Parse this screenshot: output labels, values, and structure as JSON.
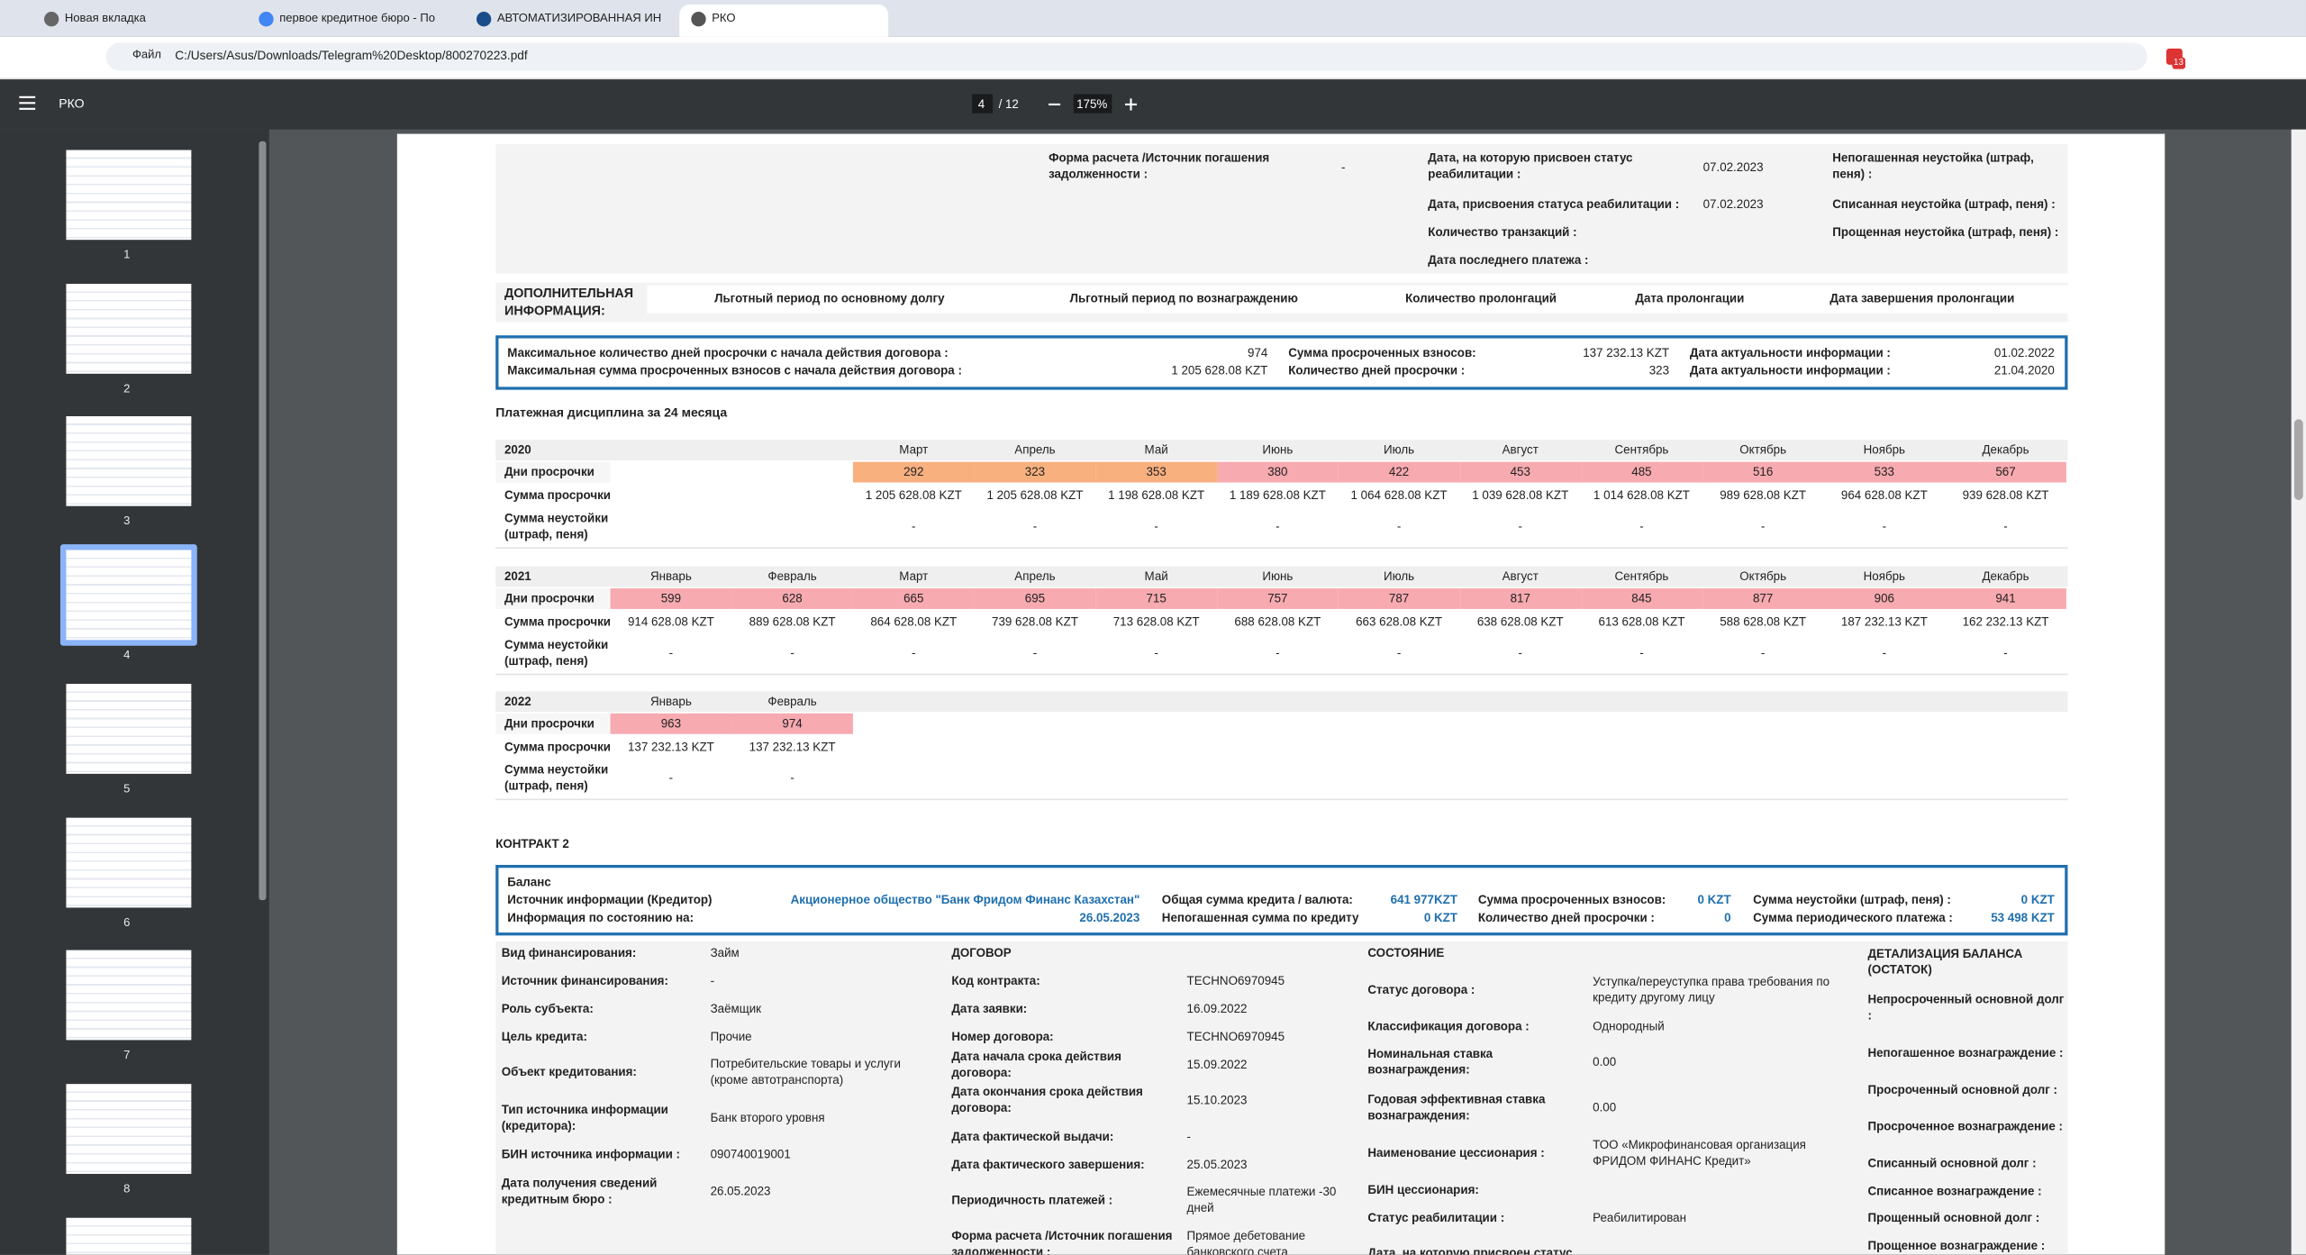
{
  "browser": {
    "tabs": [
      "Новая вкладка",
      "первое кредитное бюро - По",
      "АВТОМАТИЗИРОВАННАЯ ИН",
      "РКО"
    ],
    "file_label": "Файл",
    "address": "C:/Users/Asus/Downloads/Telegram%20Desktop/800270223.pdf"
  },
  "viewer": {
    "title": "РКО",
    "page": 4,
    "page_total": "/ 12",
    "zoom": "175%",
    "extension_badge": 13,
    "thumbnails": [
      1,
      2,
      3,
      4,
      5,
      6,
      7,
      8
    ]
  },
  "report": {
    "prev_contract": {
      "items": [
        {
          "label": "Форма расчета /Источник погашения задолженности :",
          "value": "-"
        },
        {
          "label": "Дата, на которую присвоен статус реабилитации :",
          "value": "07.02.2023"
        },
        {
          "label": "Дата, присвоения статуса реабилитации :",
          "value": "07.02.2023"
        },
        {
          "label": "Количество транзакций :"
        },
        {
          "label": "Дата последнего платежа :"
        },
        {
          "label": "Непогашенная неустойка (штраф, пеня) :"
        },
        {
          "label": "Списанная неустойка (штраф, пеня) :"
        },
        {
          "label": "Прощенная неустойка (штраф, пеня) :"
        }
      ]
    },
    "additional_info": {
      "label": "ДОПОЛНИТЕЛЬНАЯ ИНФОРМАЦИЯ:",
      "headers": [
        "Льготный период по основному долгу",
        "Льготный период по вознаграждению",
        "Количество пролонгаций",
        "Дата пролонгации",
        "Дата завершения пролонгации"
      ]
    },
    "overdue_summary": {
      "rows": [
        [
          "Максимальное количество дней просрочки с начала действия договора :",
          974,
          "Сумма просроченных взносов:",
          "137 232.13 KZT",
          "Дата актуальности информации :",
          "01.02.2022"
        ],
        [
          "Максимальная сумма просроченных взносов с начала действия договора :",
          "1 205 628.08 KZT",
          "Количество дней просрочки :",
          323,
          "Дата актуальности информации :",
          "21.04.2020"
        ]
      ]
    },
    "payment_discipline": {
      "title": "Платежная дисциплина за 24 месяца",
      "row_labels": [
        "Дни просрочки",
        "Сумма просрочки",
        "Сумма неустойки (штраф, пеня)"
      ],
      "years": [
        {
          "year": 2020,
          "months": [
            "Март",
            "Апрель",
            "Май",
            "Июнь",
            "Июль",
            "Август",
            "Сентябрь",
            "Октябрь",
            "Ноябрь",
            "Декабрь"
          ],
          "days": [
            292,
            323,
            353,
            380,
            422,
            453,
            485,
            516,
            533,
            567
          ],
          "sums": [
            "1 205 628.08 KZT",
            "1 205 628.08 KZT",
            "1 198 628.08 KZT",
            "1 189 628.08 KZT",
            "1 064 628.08 KZT",
            "1 039 628.08 KZT",
            "1 014 628.08 KZT",
            "989 628.08 KZT",
            "964 628.08 KZT",
            "939 628.08 KZT"
          ],
          "penalties": [
            "-",
            "-",
            "-",
            "-",
            "-",
            "-",
            "-",
            "-",
            "-",
            "-"
          ],
          "colors": [
            "#f8b07f",
            "#f8b07f",
            "#f8b07f",
            "#f7aab0",
            "#f7aab0",
            "#f7aab0",
            "#f7aab0",
            "#f7aab0",
            "#f7aab0",
            "#f7aab0"
          ]
        },
        {
          "year": 2021,
          "months": [
            "Январь",
            "Февраль",
            "Март",
            "Апрель",
            "Май",
            "Июнь",
            "Июль",
            "Август",
            "Сентябрь",
            "Октябрь",
            "Ноябрь",
            "Декабрь"
          ],
          "days": [
            599,
            628,
            665,
            695,
            715,
            757,
            787,
            817,
            845,
            877,
            906,
            941
          ],
          "sums": [
            "914 628.08 KZT",
            "889 628.08 KZT",
            "864 628.08 KZT",
            "739 628.08 KZT",
            "713 628.08 KZT",
            "688 628.08 KZT",
            "663 628.08 KZT",
            "638 628.08 KZT",
            "613 628.08 KZT",
            "588 628.08 KZT",
            "187 232.13 KZT",
            "162 232.13 KZT"
          ],
          "penalties": [
            "-",
            "-",
            "-",
            "-",
            "-",
            "-",
            "-",
            "-",
            "-",
            "-",
            "-",
            "-"
          ],
          "colors": [
            "#f7aab0",
            "#f7aab0",
            "#f7aab0",
            "#f7aab0",
            "#f7aab0",
            "#f7aab0",
            "#f7aab0",
            "#f7aab0",
            "#f7aab0",
            "#f7aab0",
            "#f7aab0",
            "#f7aab0"
          ]
        },
        {
          "year": 2022,
          "months": [
            "Январь",
            "Февраль"
          ],
          "days": [
            963,
            974
          ],
          "sums": [
            "137 232.13 KZT",
            "137 232.13 KZT"
          ],
          "penalties": [
            "-",
            "-"
          ],
          "colors": [
            "#f7aab0",
            "#f7aab0"
          ]
        }
      ]
    },
    "contract2": {
      "title": "КОНТРАКТ 2",
      "balance": {
        "title": "Баланс",
        "rows": [
          [
            "Источник информации (Кредитор)",
            "Акционерное общество \"Банк Фридом Финанс Казахстан\"",
            "Общая сумма кредита / валюта:",
            "641 977KZT",
            "Сумма просроченных взносов:",
            "0 KZT",
            "Сумма неустойки (штраф, пеня) :",
            "0 KZT"
          ],
          [
            "Информация по состоянию на:",
            "26.05.2023",
            "Непогашенная сумма по кредиту",
            "0 KZT",
            "Количество дней просрочки :",
            0,
            "Сумма периодического платежа :",
            "53 498 KZT"
          ]
        ]
      },
      "details": {
        "columns": [
          {
            "rows": [
              {
                "label": "Вид финансирования:",
                "value": "Займ"
              },
              {
                "label": "Источник финансирования:",
                "value": "-"
              },
              {
                "label": "Роль субъекта:",
                "value": "Заёмщик"
              },
              {
                "label": "Цель кредита:",
                "value": "Прочие"
              },
              {
                "label": "Объект кредитования:",
                "value": "Потребительские товары и услуги (кроме автотранспорта)"
              },
              {
                "label": "Тип источника информации (кредитора):",
                "value": "Банк второго уровня"
              },
              {
                "label": "БИН источника информации :",
                "value": "090740019001"
              },
              {
                "label": "Дата получения сведений кредитным бюро :",
                "value": "26.05.2023"
              }
            ]
          },
          {
            "heading": "ДОГОВОР",
            "rows": [
              {
                "label": "Код контракта:",
                "value": "TECHNO6970945"
              },
              {
                "label": "Дата заявки:",
                "value": "16.09.2022"
              },
              {
                "label": "Номер договора:",
                "value": "TECHNO6970945"
              },
              {
                "label": "Дата начала срока действия договора:",
                "value": "15.09.2022"
              },
              {
                "label": "Дата окончания срока действия договора:",
                "value": "15.10.2023"
              },
              {
                "label": "Дата фактической выдачи:",
                "value": "-"
              },
              {
                "label": "Дата фактического завершения:",
                "value": "25.05.2023"
              },
              {
                "label": "Периодичность платежей :",
                "value": "Ежемесячные платежи -30 дней"
              },
              {
                "label": "Форма расчета /Источник погашения задолженности :",
                "value": "Прямое дебетование банковского счета"
              }
            ]
          },
          {
            "heading": "СОСТОЯНИЕ",
            "rows": [
              {
                "label": "Статус договора :",
                "value": "Уступка/переуступка права требования по кредиту другому лицу"
              },
              {
                "label": "Классификация договора :",
                "value": "Однородный"
              },
              {
                "label": "Номинальная ставка вознаграждения:",
                "value": "0.00"
              },
              {
                "label": "Годовая эффективная ставка вознаграждения:",
                "value": "0.00"
              },
              {
                "label": "Наименование цессионария :",
                "value": "ТОО «Микрофинансовая организация ФРИДОМ ФИНАНС Кредит»"
              },
              {
                "label": "БИН цессионария:"
              },
              {
                "label": "Статус реабилитации :",
                "value": "Реабилитирован"
              },
              {
                "label": "Дата, на которую присвоен статус"
              }
            ]
          },
          {
            "heading": "ДЕТАЛИЗАЦИЯ БАЛАНСА (ОСТАТОК)",
            "rows": [
              {
                "label": "Непросроченный основной долг :"
              },
              {
                "label": "Непогашенное вознаграждение :"
              },
              {
                "label": "Просроченный основной долг :"
              },
              {
                "label": "Просроченное вознаграждение :"
              },
              {
                "label": "Списанный основной долг :"
              },
              {
                "label": "Списанное вознаграждение :"
              },
              {
                "label": "Прощенный основной долг :"
              },
              {
                "label": "Прощенное вознаграждение :"
              }
            ]
          }
        ]
      }
    }
  }
}
